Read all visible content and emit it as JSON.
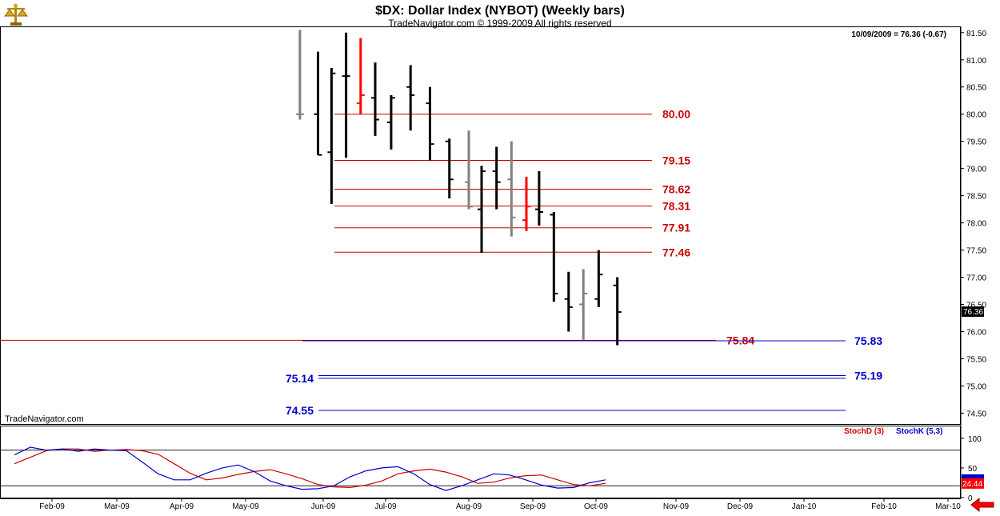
{
  "header": {
    "title": "$DX:  Dollar Index (NYBOT)  (Weekly bars)",
    "subtitle": "TradeNavigator.com © 1999-2009 All rights reserved",
    "last_value_label": "10/09/2009 = 76.36 (-0.67)",
    "watermark": "TradeNavigator.com"
  },
  "colors": {
    "price_bar": "#000000",
    "price_bar_gray": "#808080",
    "price_bar_red": "#ff0000",
    "red_level": "#cc0000",
    "blue_level": "#0000cc",
    "stoch_d": "#cc0000",
    "stoch_k": "#0000cc"
  },
  "icons": {
    "logo": "scales-icon",
    "scroll_arrow": "red-left-arrow-icon"
  },
  "chart_data": [
    {
      "type": "ohlc",
      "title": "$DX:  Dollar Index (NYBOT)  (Weekly bars)",
      "ylim": [
        74.3,
        81.6
      ],
      "y_ticks": [
        "81.50",
        "81.00",
        "80.50",
        "80.00",
        "79.50",
        "79.00",
        "78.50",
        "78.00",
        "77.50",
        "77.00",
        "76.50",
        "76.00",
        "75.50",
        "75.00",
        "74.50"
      ],
      "x_ticks": [
        "Feb-09",
        "Mar-09",
        "Apr-09",
        "May-09",
        "Jun-09",
        "Jul-09",
        "Aug-09",
        "Sep-09",
        "Oct-09",
        "Nov-09",
        "Dec-09",
        "Jan-10",
        "Feb-10",
        "Mar-10"
      ],
      "last_price": "76.36",
      "bars": [
        {
          "date": "2009-05-22",
          "open": 80.0,
          "high": 81.55,
          "low": 79.9,
          "close": 80.0,
          "color": "gray"
        },
        {
          "date": "2009-05-29",
          "open": 80.0,
          "high": 81.15,
          "low": 79.25,
          "close": 79.25,
          "color": "black"
        },
        {
          "date": "2009-06-05",
          "open": 79.3,
          "high": 80.85,
          "low": 78.35,
          "close": 80.75,
          "color": "black"
        },
        {
          "date": "2009-06-12",
          "open": 80.7,
          "high": 81.5,
          "low": 79.2,
          "close": 80.7,
          "color": "black"
        },
        {
          "date": "2009-06-19",
          "open": 80.2,
          "high": 81.4,
          "low": 80.0,
          "close": 80.35,
          "color": "red"
        },
        {
          "date": "2009-06-26",
          "open": 80.3,
          "high": 80.95,
          "low": 79.6,
          "close": 79.9,
          "color": "black"
        },
        {
          "date": "2009-07-03",
          "open": 79.85,
          "high": 80.35,
          "low": 79.35,
          "close": 80.3,
          "color": "black"
        },
        {
          "date": "2009-07-10",
          "open": 80.5,
          "high": 80.9,
          "low": 79.7,
          "close": 80.35,
          "color": "black"
        },
        {
          "date": "2009-07-17",
          "open": 80.2,
          "high": 80.5,
          "low": 79.15,
          "close": 79.45,
          "color": "black"
        },
        {
          "date": "2009-07-24",
          "open": 79.5,
          "high": 79.55,
          "low": 78.45,
          "close": 78.8,
          "color": "black"
        },
        {
          "date": "2009-07-31",
          "open": 78.75,
          "high": 79.7,
          "low": 78.25,
          "close": 78.3,
          "color": "gray"
        },
        {
          "date": "2009-08-07",
          "open": 78.25,
          "high": 79.05,
          "low": 77.45,
          "close": 78.95,
          "color": "black"
        },
        {
          "date": "2009-08-14",
          "open": 78.95,
          "high": 79.4,
          "low": 78.25,
          "close": 78.75,
          "color": "black"
        },
        {
          "date": "2009-08-21",
          "open": 78.8,
          "high": 79.5,
          "low": 77.75,
          "close": 78.1,
          "color": "gray"
        },
        {
          "date": "2009-08-28",
          "open": 78.05,
          "high": 78.85,
          "low": 77.85,
          "close": 78.3,
          "color": "red"
        },
        {
          "date": "2009-09-04",
          "open": 78.25,
          "high": 78.95,
          "low": 77.95,
          "close": 78.2,
          "color": "black"
        },
        {
          "date": "2009-09-11",
          "open": 78.15,
          "high": 78.2,
          "low": 76.55,
          "close": 76.7,
          "color": "black"
        },
        {
          "date": "2009-09-18",
          "open": 76.6,
          "high": 77.1,
          "low": 76.0,
          "close": 76.45,
          "color": "black"
        },
        {
          "date": "2009-09-25",
          "open": 76.5,
          "high": 77.15,
          "low": 75.85,
          "close": 76.7,
          "color": "gray"
        },
        {
          "date": "2009-10-02",
          "open": 76.6,
          "high": 77.5,
          "low": 76.45,
          "close": 77.05,
          "color": "black"
        },
        {
          "date": "2009-10-09",
          "open": 76.85,
          "high": 77.0,
          "low": 75.75,
          "close": 76.36,
          "color": "black"
        }
      ],
      "levels": [
        {
          "value": 80.0,
          "label": "80.00",
          "color": "red"
        },
        {
          "value": 79.15,
          "label": "79.15",
          "color": "red"
        },
        {
          "value": 78.62,
          "label": "78.62",
          "color": "red"
        },
        {
          "value": 78.31,
          "label": "78.31",
          "color": "red"
        },
        {
          "value": 77.91,
          "label": "77.91",
          "color": "red"
        },
        {
          "value": 77.46,
          "label": "77.46",
          "color": "red"
        },
        {
          "value": 75.84,
          "label": "75.84",
          "color": "red"
        },
        {
          "value": 75.83,
          "label": "75.83",
          "color": "blue"
        },
        {
          "value": 75.19,
          "label": "75.19",
          "color": "blue"
        },
        {
          "value": 75.14,
          "label": "75.14",
          "color": "blue"
        },
        {
          "value": 74.55,
          "label": "74.55",
          "color": "blue"
        }
      ]
    },
    {
      "type": "line",
      "title": "",
      "ylim": [
        0,
        120
      ],
      "y_ticks": [
        "100",
        "50",
        "0"
      ],
      "reference_lines": [
        80,
        20
      ],
      "last_value": "24.44",
      "series": [
        {
          "name": "StochD (3)",
          "color": "red",
          "values": [
            57,
            68,
            79,
            82,
            82,
            78,
            80,
            81,
            79,
            73,
            57,
            41,
            30,
            33,
            39,
            44,
            47,
            40,
            32,
            22,
            18,
            17,
            21,
            28,
            40,
            45,
            48,
            43,
            35,
            24,
            26,
            33,
            37,
            38,
            30,
            22,
            20,
            24
          ]
        },
        {
          "name": "StochK (5,3)",
          "color": "blue",
          "values": [
            72,
            85,
            80,
            82,
            78,
            82,
            80,
            79,
            60,
            40,
            30,
            30,
            41,
            50,
            55,
            44,
            28,
            20,
            14,
            15,
            20,
            35,
            45,
            50,
            52,
            40,
            22,
            12,
            20,
            30,
            40,
            38,
            30,
            21,
            16,
            17,
            25,
            30
          ]
        }
      ]
    }
  ]
}
